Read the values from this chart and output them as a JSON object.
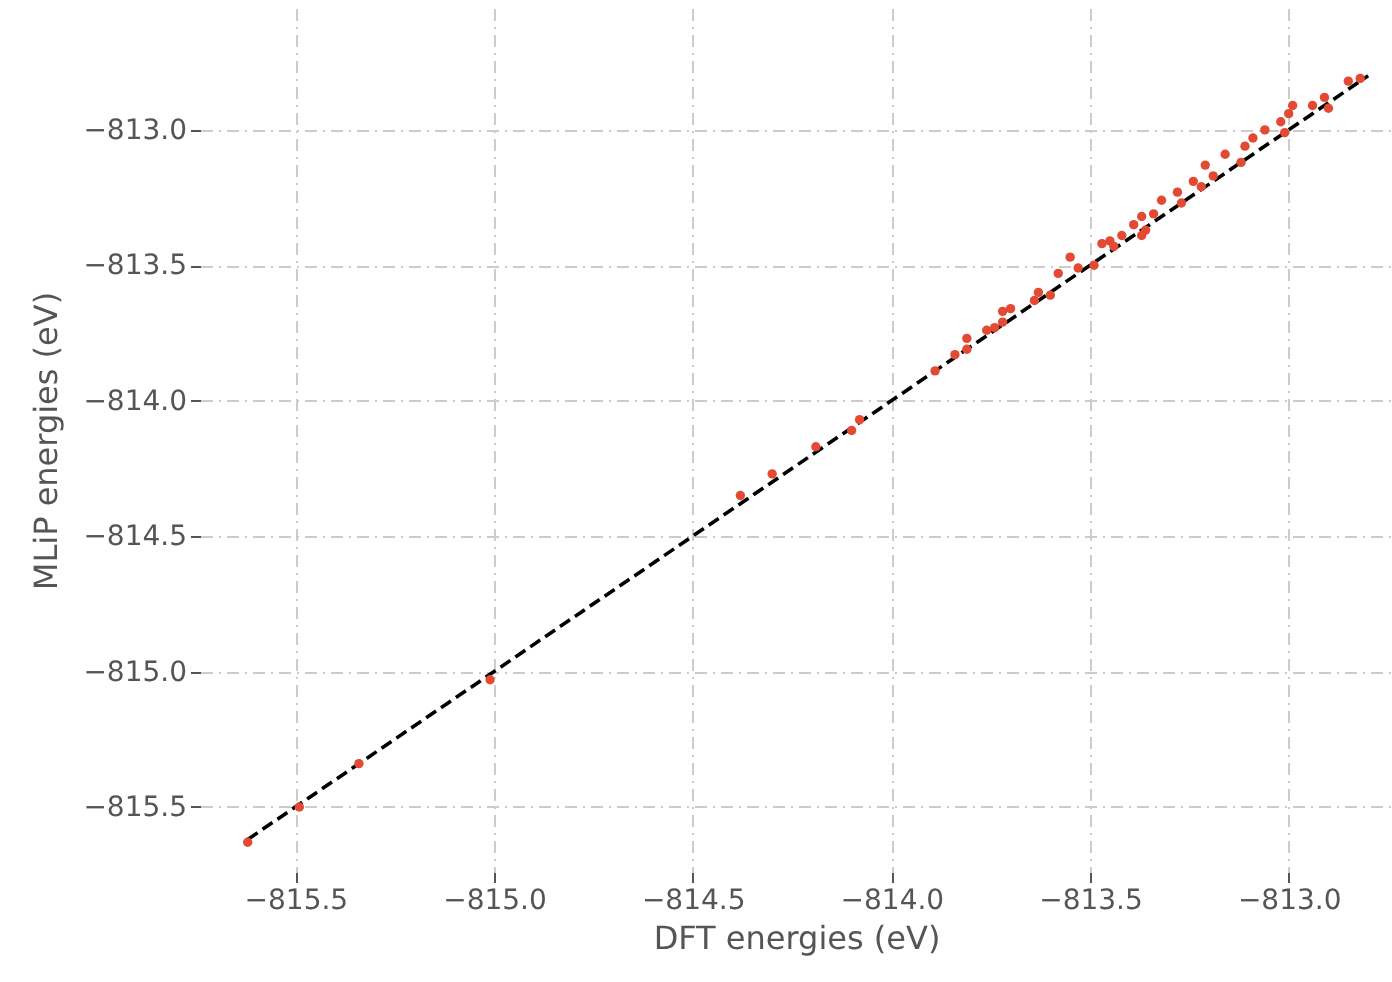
{
  "chart_data": {
    "type": "scatter",
    "xlabel": "DFT energies (eV)",
    "ylabel": "MLiP energies (eV)",
    "xlim": [
      -815.74,
      -812.74
    ],
    "ylim": [
      -815.74,
      -812.55
    ],
    "xticks": [
      {
        "value": -815.5,
        "label": "−815.5"
      },
      {
        "value": -815.0,
        "label": "−815.0"
      },
      {
        "value": -814.5,
        "label": "−814.5"
      },
      {
        "value": -814.0,
        "label": "−814.0"
      },
      {
        "value": -813.5,
        "label": "−813.5"
      },
      {
        "value": -813.0,
        "label": "−813.0"
      }
    ],
    "yticks": [
      {
        "value": -815.5,
        "label": "−815.5"
      },
      {
        "value": -815.0,
        "label": "−815.0"
      },
      {
        "value": -814.5,
        "label": "−814.5"
      },
      {
        "value": -814.0,
        "label": "−814.0"
      },
      {
        "value": -813.5,
        "label": "−813.5"
      },
      {
        "value": -813.0,
        "label": "−813.0"
      }
    ],
    "grid": true,
    "series": [
      {
        "color": "#e24a33",
        "marker": "circle",
        "x": [
          -815.62,
          -815.49,
          -815.34,
          -815.01,
          -814.38,
          -814.3,
          -814.19,
          -814.1,
          -814.08,
          -813.89,
          -813.84,
          -813.81,
          -813.81,
          -813.76,
          -813.74,
          -813.72,
          -813.7,
          -813.72,
          -813.64,
          -813.63,
          -813.6,
          -813.58,
          -813.55,
          -813.53,
          -813.49,
          -813.47,
          -813.45,
          -813.44,
          -813.42,
          -813.39,
          -813.37,
          -813.36,
          -813.34,
          -813.37,
          -813.32,
          -813.28,
          -813.27,
          -813.24,
          -813.22,
          -813.21,
          -813.19,
          -813.16,
          -813.12,
          -813.11,
          -813.09,
          -813.06,
          -813.02,
          -813.01,
          -812.99,
          -813.0,
          -812.94,
          -812.9,
          -812.91,
          -812.85,
          -812.82
        ],
        "values": [
          -815.63,
          -815.5,
          -815.34,
          -815.03,
          -814.35,
          -814.27,
          -814.17,
          -814.11,
          -814.07,
          -813.89,
          -813.83,
          -813.81,
          -813.77,
          -813.74,
          -813.73,
          -813.67,
          -813.66,
          -813.71,
          -813.63,
          -813.6,
          -813.61,
          -813.53,
          -813.47,
          -813.51,
          -813.5,
          -813.42,
          -813.41,
          -813.43,
          -813.39,
          -813.35,
          -813.32,
          -813.37,
          -813.31,
          -813.39,
          -813.26,
          -813.23,
          -813.27,
          -813.19,
          -813.21,
          -813.13,
          -813.17,
          -813.09,
          -813.12,
          -813.06,
          -813.03,
          -813.0,
          -812.97,
          -813.01,
          -812.91,
          -812.94,
          -812.91,
          -812.92,
          -812.88,
          -812.82,
          -812.81
        ]
      },
      {
        "type": "line",
        "color": "#000000",
        "line_style": "dashed",
        "x": [
          -815.62,
          -812.8
        ],
        "values": [
          -815.62,
          -812.8
        ]
      }
    ]
  }
}
